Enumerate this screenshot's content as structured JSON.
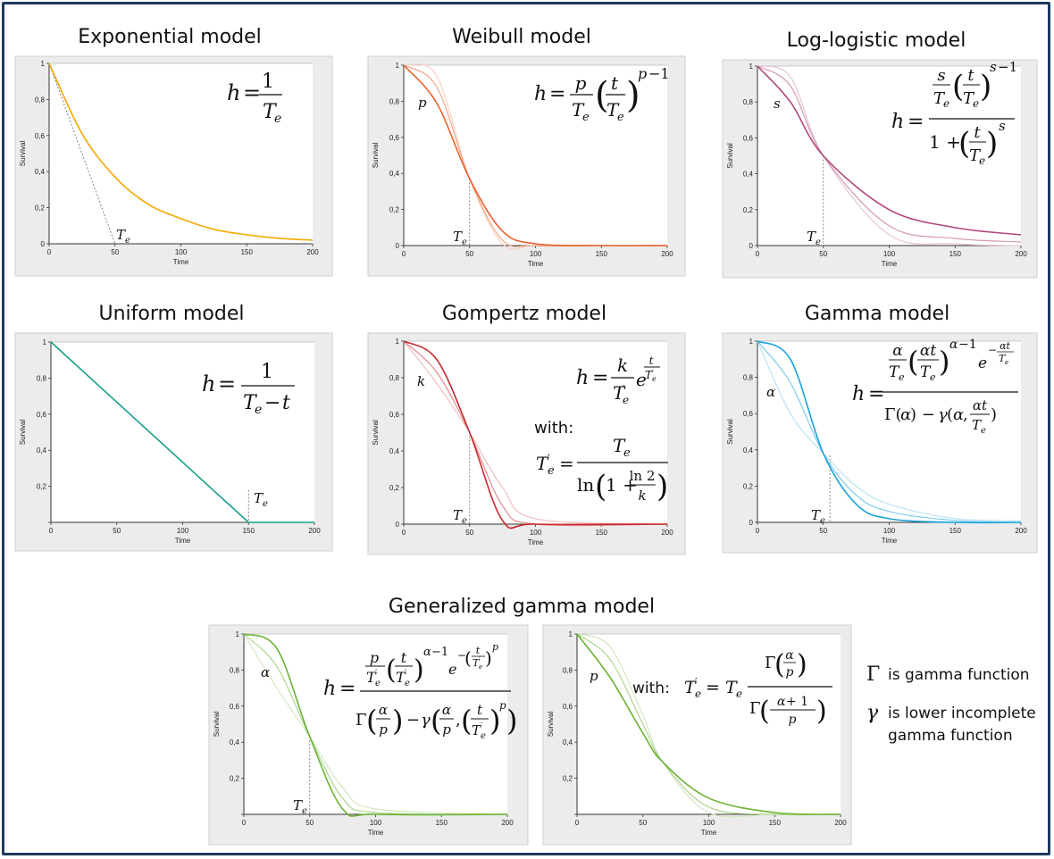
{
  "titles": {
    "exponential": "Exponential model",
    "weibull": "Weibull model",
    "loglogistic": "Log-logistic model",
    "uniform": "Uniform model",
    "gompertz": "Gompertz model",
    "gamma": "Gamma model",
    "gengamma": "Generalized gamma model"
  },
  "axis": {
    "xlabel": "Time",
    "ylabel": "Survival",
    "xticks": [
      "0",
      "50",
      "100",
      "150",
      "200"
    ],
    "yticks": [
      "0",
      "0,2",
      "0,4",
      "0,6",
      "0,8",
      "1"
    ]
  },
  "notes": {
    "with": "with:",
    "gamma_symbol": "Γ",
    "gamma_text": "is gamma function",
    "lower_symbol": "γ",
    "lower_text_1": "is lower incomplete",
    "lower_text_2": "gamma function"
  },
  "colors": {
    "exponential": "#f2a900",
    "weibull": "#e8602c",
    "loglogistic": "#b0457a",
    "uniform": "#179e8a",
    "gompertz": "#c8282d",
    "gamma": "#1aa2dc",
    "gengamma": "#6bb233",
    "panel_bg": "#ececec",
    "frame": "#1f3a5f"
  },
  "chart_data": [
    {
      "id": "exponential",
      "type": "line",
      "title": "Exponential model",
      "xlabel": "Time",
      "ylabel": "Survival",
      "xlim": [
        0,
        200
      ],
      "ylim": [
        0,
        1
      ],
      "Te": 50,
      "param_label": "",
      "series": [
        {
          "x": [
            0,
            25,
            50,
            75,
            100,
            125,
            150,
            175,
            200
          ],
          "values": [
            1,
            0.61,
            0.37,
            0.22,
            0.14,
            0.08,
            0.05,
            0.03,
            0.02
          ]
        }
      ],
      "annotations": [
        "T_e"
      ]
    },
    {
      "id": "weibull",
      "type": "line",
      "title": "Weibull model",
      "xlabel": "Time",
      "ylabel": "Survival",
      "xlim": [
        0,
        200
      ],
      "ylim": [
        0,
        1
      ],
      "Te": 50,
      "param_label": "p",
      "series": [
        {
          "x": [
            0,
            25,
            50,
            75,
            100,
            150,
            200
          ],
          "values": [
            1,
            0.79,
            0.37,
            0.08,
            0.01,
            0,
            0
          ]
        },
        {
          "x": [
            0,
            25,
            50,
            75,
            100,
            150,
            200
          ],
          "values": [
            1,
            0.88,
            0.37,
            0.03,
            0,
            0,
            0
          ]
        },
        {
          "x": [
            0,
            25,
            50,
            75,
            100,
            150,
            200
          ],
          "values": [
            1,
            0.94,
            0.37,
            0.01,
            0,
            0,
            0
          ]
        }
      ]
    },
    {
      "id": "loglogistic",
      "type": "line",
      "title": "Log-logistic model",
      "xlabel": "Time",
      "ylabel": "Survival",
      "xlim": [
        0,
        200
      ],
      "ylim": [
        0,
        1
      ],
      "Te": 50,
      "param_label": "s",
      "series": [
        {
          "x": [
            0,
            25,
            50,
            100,
            150,
            200
          ],
          "values": [
            1,
            0.8,
            0.5,
            0.2,
            0.1,
            0.06
          ]
        },
        {
          "x": [
            0,
            25,
            50,
            100,
            150,
            200
          ],
          "values": [
            1,
            0.89,
            0.5,
            0.11,
            0.04,
            0.02
          ]
        },
        {
          "x": [
            0,
            25,
            50,
            100,
            150,
            200
          ],
          "values": [
            1,
            0.94,
            0.5,
            0.06,
            0.01,
            0
          ]
        }
      ]
    },
    {
      "id": "uniform",
      "type": "line",
      "title": "Uniform model",
      "xlabel": "Time",
      "ylabel": "Survival",
      "xlim": [
        0,
        200
      ],
      "ylim": [
        0,
        1
      ],
      "Te": 150,
      "param_label": "",
      "series": [
        {
          "x": [
            0,
            150,
            200
          ],
          "values": [
            1,
            0,
            0
          ]
        }
      ]
    },
    {
      "id": "gompertz",
      "type": "line",
      "title": "Gompertz model",
      "xlabel": "Time",
      "ylabel": "Survival",
      "xlim": [
        0,
        200
      ],
      "ylim": [
        0,
        1
      ],
      "Te": 50,
      "param_label": "k",
      "series": [
        {
          "x": [
            0,
            25,
            50,
            75,
            100,
            200
          ],
          "values": [
            1,
            0.9,
            0.5,
            0.02,
            0,
            0
          ]
        },
        {
          "x": [
            0,
            25,
            50,
            75,
            100,
            200
          ],
          "values": [
            1,
            0.83,
            0.5,
            0.1,
            0,
            0
          ]
        },
        {
          "x": [
            0,
            25,
            50,
            75,
            100,
            200
          ],
          "values": [
            1,
            0.77,
            0.5,
            0.2,
            0.03,
            0
          ]
        }
      ]
    },
    {
      "id": "gamma",
      "type": "line",
      "title": "Gamma model",
      "xlabel": "Time",
      "ylabel": "Survival",
      "xlim": [
        0,
        200
      ],
      "ylim": [
        0,
        1
      ],
      "Te": 55,
      "param_label": "α",
      "series": [
        {
          "x": [
            0,
            25,
            50,
            75,
            100,
            150,
            200
          ],
          "values": [
            1,
            0.9,
            0.38,
            0.1,
            0.02,
            0,
            0
          ]
        },
        {
          "x": [
            0,
            25,
            50,
            75,
            100,
            150,
            200
          ],
          "values": [
            1,
            0.77,
            0.38,
            0.15,
            0.06,
            0.01,
            0
          ]
        },
        {
          "x": [
            0,
            25,
            50,
            75,
            100,
            150,
            200
          ],
          "values": [
            1,
            0.6,
            0.38,
            0.2,
            0.1,
            0.02,
            0.01
          ]
        }
      ]
    },
    {
      "id": "gengamma1",
      "type": "line",
      "title": "Generalized gamma model",
      "xlabel": "Time",
      "ylabel": "Survival",
      "xlim": [
        0,
        200
      ],
      "ylim": [
        0,
        1
      ],
      "Te": 50,
      "param_label": "α",
      "series": [
        {
          "x": [
            0,
            25,
            50,
            75,
            100,
            200
          ],
          "values": [
            1,
            0.92,
            0.43,
            0.03,
            0,
            0
          ]
        },
        {
          "x": [
            0,
            25,
            50,
            75,
            100,
            200
          ],
          "values": [
            1,
            0.82,
            0.43,
            0.09,
            0.01,
            0
          ]
        },
        {
          "x": [
            0,
            25,
            50,
            75,
            100,
            200
          ],
          "values": [
            1,
            0.7,
            0.43,
            0.15,
            0.03,
            0
          ]
        }
      ]
    },
    {
      "id": "gengamma2",
      "type": "line",
      "title": "",
      "xlabel": "Time",
      "ylabel": "Survival",
      "xlim": [
        0,
        200
      ],
      "ylim": [
        0,
        1
      ],
      "Te": 65,
      "param_label": "p",
      "series": [
        {
          "x": [
            0,
            25,
            50,
            65,
            100,
            150,
            200
          ],
          "values": [
            1,
            0.76,
            0.45,
            0.29,
            0.09,
            0.01,
            0
          ]
        },
        {
          "x": [
            0,
            25,
            50,
            65,
            100,
            150,
            200
          ],
          "values": [
            1,
            0.86,
            0.5,
            0.29,
            0.04,
            0,
            0
          ]
        },
        {
          "x": [
            0,
            25,
            50,
            65,
            100,
            150,
            200
          ],
          "values": [
            1,
            0.93,
            0.55,
            0.29,
            0.01,
            0,
            0
          ]
        }
      ]
    }
  ]
}
